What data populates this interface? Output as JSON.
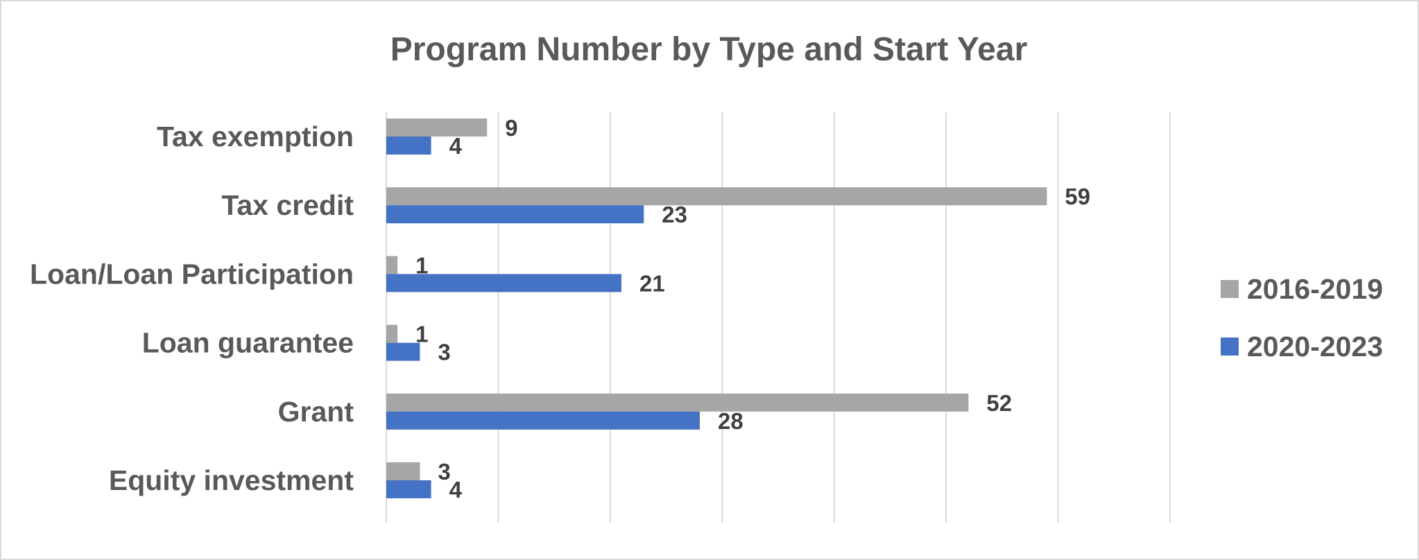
{
  "chart_data": {
    "type": "bar",
    "orientation": "horizontal",
    "title": "Program Number by Type and Start Year",
    "categories": [
      "Tax exemption",
      "Tax credit",
      "Loan/Loan Participation",
      "Loan guarantee",
      "Grant",
      "Equity investment"
    ],
    "series": [
      {
        "name": "2016-2019",
        "color": "#a6a6a6",
        "values": [
          9,
          59,
          1,
          1,
          52,
          3
        ]
      },
      {
        "name": "2020-2023",
        "color": "#4472c4",
        "values": [
          4,
          23,
          21,
          3,
          28,
          4
        ]
      }
    ],
    "xlim": [
      0,
      70
    ],
    "x_gridline_step": 10,
    "grid": true,
    "data_labels": true,
    "legend_position": "right",
    "gridline_color": "#d9d9d9"
  }
}
